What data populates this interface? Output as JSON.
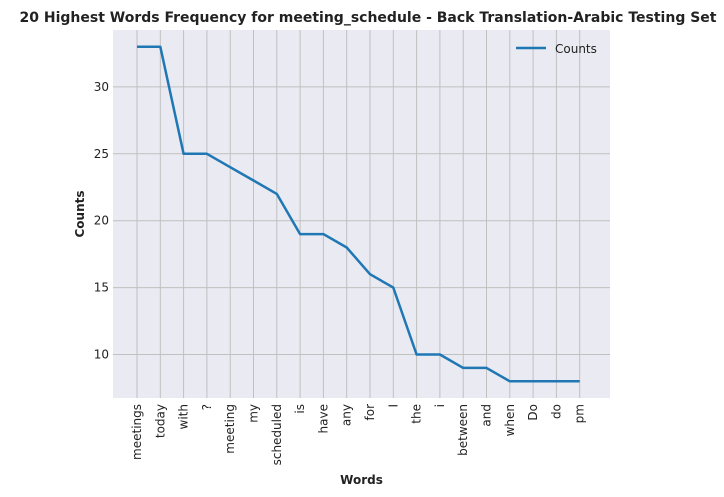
{
  "chart_data": {
    "type": "line",
    "title": "20 Highest Words Frequency for meeting_schedule - Back Translation-Arabic Testing Set",
    "xlabel": "Words",
    "ylabel": "Counts",
    "categories": [
      "meetings",
      "today",
      "with",
      "?",
      "meeting",
      "my",
      "scheduled",
      "is",
      "have",
      "any",
      "for",
      "I",
      "the",
      "i",
      "between",
      "and",
      "when",
      "Do",
      "do",
      "pm"
    ],
    "series": [
      {
        "name": "Counts",
        "values": [
          33,
          33,
          25,
          25,
          24,
          23,
          22,
          19,
          19,
          18,
          16,
          15,
          10,
          10,
          9,
          9,
          8,
          8,
          8,
          8
        ],
        "color": "#1f77b4"
      }
    ],
    "ylim": [
      6.75,
      34.25
    ],
    "yticks": [
      10,
      15,
      20,
      25,
      30
    ],
    "grid": true,
    "legend": "top-right",
    "colors": {
      "plot_bg": "#eaeaf2",
      "grid": "#c0c0c0"
    }
  }
}
